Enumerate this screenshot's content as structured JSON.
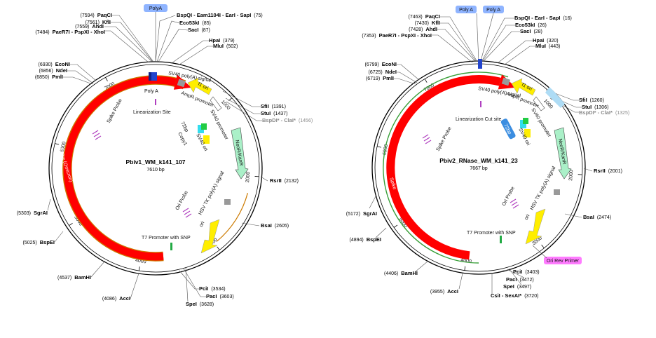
{
  "colors": {
    "backbone": "#000000",
    "spike": "#ff0000",
    "spike_outline": "#cc7a00",
    "green_track": "#3aa03a",
    "ori": "#ffee00",
    "neokanr": "#aaf0c8",
    "polya_tag": "#8fb4ff",
    "primer_tag": "#ff7bff",
    "probe": "#b040c0",
    "cut_site": "#b040c0"
  },
  "maps": [
    {
      "title": "Pbiv1_WM_k141_107",
      "subtitle": "7610 bp",
      "total": 7610,
      "top_tags": [
        "PolyA"
      ],
      "extra_tags": [],
      "ticks": [
        {
          "pos": 1000,
          "label": "1000"
        },
        {
          "pos": 2000,
          "label": "2000"
        },
        {
          "pos": 3000,
          "label": "3000"
        },
        {
          "pos": 4000,
          "label": "4000"
        },
        {
          "pos": 5000,
          "label": "5000"
        },
        {
          "pos": 6000,
          "label": "6000"
        },
        {
          "pos": 7000,
          "label": "7000"
        }
      ],
      "sites_right": [
        {
          "name": "BspQI - Eam1104I - EarI - SapI",
          "pos": "(75)",
          "grey": false
        },
        {
          "name": "Eco53kI",
          "pos": "(85)",
          "grey": false
        },
        {
          "name": "SacI",
          "pos": "(87)",
          "grey": false
        },
        {
          "name": "HpaI",
          "pos": "(379)",
          "grey": false
        },
        {
          "name": "MluI",
          "pos": "(502)",
          "grey": false
        },
        {
          "name": "SfiI",
          "pos": "(1391)",
          "grey": false
        },
        {
          "name": "StuI",
          "pos": "(1437)",
          "grey": false
        },
        {
          "name": "BspDI* - ClaI*",
          "pos": "(1456)",
          "grey": true
        },
        {
          "name": "RsrII",
          "pos": "(2132)",
          "grey": false
        },
        {
          "name": "BsaI",
          "pos": "(2605)",
          "grey": false
        }
      ],
      "sites_left": [
        {
          "name": "PaqCI",
          "pos": "(7594)",
          "grey": false
        },
        {
          "name": "KflI",
          "pos": "(7561)",
          "grey": false
        },
        {
          "name": "AhdI",
          "pos": "(7559)",
          "grey": false
        },
        {
          "name": "PaeR7I - PspXI - XhoI",
          "pos": "(7484)",
          "grey": false
        },
        {
          "name": "EcoNI",
          "pos": "(6930)",
          "grey": false
        },
        {
          "name": "NdeI",
          "pos": "(6856)",
          "grey": false
        },
        {
          "name": "PmlI",
          "pos": "(6850)",
          "grey": false
        },
        {
          "name": "SgrAI",
          "pos": "(5303)",
          "grey": false
        },
        {
          "name": "BspEI",
          "pos": "(5025)",
          "grey": false
        },
        {
          "name": "BamHI",
          "pos": "(4537)",
          "grey": false
        },
        {
          "name": "AccI",
          "pos": "(4086)",
          "grey": false
        }
      ],
      "sites_bottom": [
        {
          "name": "PciI",
          "pos": "(3534)",
          "grey": false
        },
        {
          "name": "PacI",
          "pos": "(3603)",
          "grey": false
        },
        {
          "name": "SpeI",
          "pos": "(3628)",
          "grey": false
        }
      ],
      "features": [
        {
          "label": "Poly A"
        },
        {
          "label": "SV40 poly(A) signal"
        },
        {
          "label": "f1 ori"
        },
        {
          "label": "AmpR promoter"
        },
        {
          "label": "SV40 promoter"
        },
        {
          "label": "NeoR/KanR"
        },
        {
          "label": "HSV TK poly(A) signal"
        },
        {
          "label": "ori"
        },
        {
          "label": "T7 Promoter with SNP"
        },
        {
          "label": "Spike (Omicron)"
        },
        {
          "label": "Linearization Site"
        },
        {
          "label": "Spike Probe"
        },
        {
          "label": "Ori Probe"
        },
        {
          "label": "72bp"
        },
        {
          "label": "Copy1"
        },
        {
          "label": "SV40 ori"
        }
      ]
    },
    {
      "title": "Pbiv2_RNase_WM_k141_23",
      "subtitle": "7667 bp",
      "total": 7667,
      "top_tags": [
        "Poly A",
        "Poly A"
      ],
      "extra_tags": [
        "Ori Rev Primer",
        "72bp"
      ],
      "ticks": [
        {
          "pos": 1000,
          "label": "1000"
        },
        {
          "pos": 2000,
          "label": "2000"
        },
        {
          "pos": 3000,
          "label": "3000"
        },
        {
          "pos": 4000,
          "label": "4000"
        },
        {
          "pos": 5000,
          "label": "5000"
        },
        {
          "pos": 6000,
          "label": "6000"
        },
        {
          "pos": 7000,
          "label": "7000"
        }
      ],
      "sites_right": [
        {
          "name": "BspQI - EarI - SapI",
          "pos": "(16)",
          "grey": false
        },
        {
          "name": "Eco53kI",
          "pos": "(26)",
          "grey": false
        },
        {
          "name": "SacI",
          "pos": "(28)",
          "grey": false
        },
        {
          "name": "HpaI",
          "pos": "(320)",
          "grey": false
        },
        {
          "name": "MluI",
          "pos": "(443)",
          "grey": false
        },
        {
          "name": "SfiI",
          "pos": "(1260)",
          "grey": false
        },
        {
          "name": "StuI",
          "pos": "(1306)",
          "grey": false
        },
        {
          "name": "BspDI* - ClaI*",
          "pos": "(1325)",
          "grey": true
        },
        {
          "name": "RsrII",
          "pos": "(2001)",
          "grey": false
        },
        {
          "name": "BsaI",
          "pos": "(2474)",
          "grey": false
        }
      ],
      "sites_left": [
        {
          "name": "PaqCI",
          "pos": "(7463)",
          "grey": false
        },
        {
          "name": "KflI",
          "pos": "(7430)",
          "grey": false
        },
        {
          "name": "AhdI",
          "pos": "(7428)",
          "grey": false
        },
        {
          "name": "PaeR7I - PspXI - XhoI",
          "pos": "(7353)",
          "grey": false
        },
        {
          "name": "EcoNI",
          "pos": "(6799)",
          "grey": false
        },
        {
          "name": "NdeI",
          "pos": "(6725)",
          "grey": false
        },
        {
          "name": "PmlI",
          "pos": "(6719)",
          "grey": false
        },
        {
          "name": "SgrAI",
          "pos": "(5172)",
          "grey": false
        },
        {
          "name": "BspEI",
          "pos": "(4894)",
          "grey": false
        },
        {
          "name": "BamHI",
          "pos": "(4406)",
          "grey": false
        },
        {
          "name": "AccI",
          "pos": "(3955)",
          "grey": false
        }
      ],
      "sites_bottom": [
        {
          "name": "PciI",
          "pos": "(3403)",
          "grey": false
        },
        {
          "name": "PacI",
          "pos": "(3472)",
          "grey": false
        },
        {
          "name": "SpeI",
          "pos": "(3497)",
          "grey": false
        },
        {
          "name": "CsiI - SexAI*",
          "pos": "(3720)",
          "grey": false
        }
      ],
      "features": [
        {
          "label": "SV40 poly(A) signal"
        },
        {
          "label": "f1 ori"
        },
        {
          "label": "AmpR promoter"
        },
        {
          "label": "SV40 promoter"
        },
        {
          "label": "NeoR/KanR"
        },
        {
          "label": "HSV TK poly(A) signal"
        },
        {
          "label": "ori"
        },
        {
          "label": "T7 Promoter with SNP"
        },
        {
          "label": "Spike"
        },
        {
          "label": "Linearization Cut site"
        },
        {
          "label": "Spike Probe"
        },
        {
          "label": "Ori Probe"
        },
        {
          "label": "SV40 ori"
        }
      ]
    }
  ]
}
